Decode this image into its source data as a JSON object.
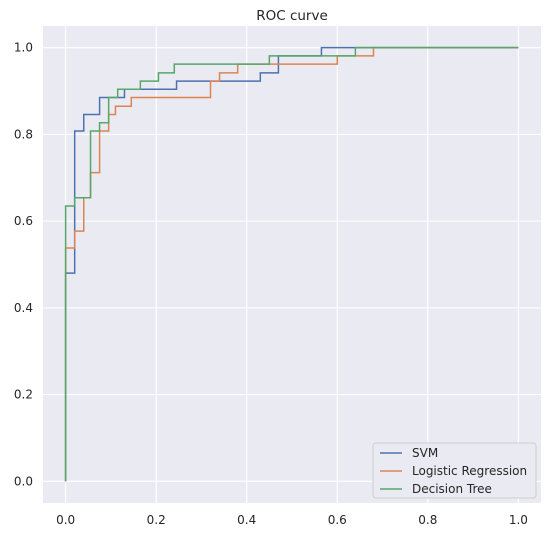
{
  "chart_data": {
    "type": "line",
    "title": "ROC curve",
    "xlabel": "",
    "ylabel": "",
    "xlim": [
      -0.05,
      1.05
    ],
    "ylim": [
      -0.05,
      1.05
    ],
    "xticks": [
      0.0,
      0.2,
      0.4,
      0.6,
      0.8,
      1.0
    ],
    "yticks": [
      0.0,
      0.2,
      0.4,
      0.6,
      0.8,
      1.0
    ],
    "xtick_labels": [
      "0.0",
      "0.2",
      "0.4",
      "0.6",
      "0.8",
      "1.0"
    ],
    "ytick_labels": [
      "0.0",
      "0.2",
      "0.4",
      "0.6",
      "0.8",
      "1.0"
    ],
    "grid": true,
    "legend_position": "lower-right",
    "series": [
      {
        "name": "SVM",
        "color": "#4c72b0",
        "x": [
          0,
          0,
          0.02,
          0.02,
          0.04,
          0.04,
          0.075,
          0.075,
          0.13,
          0.13,
          0.245,
          0.245,
          0.43,
          0.43,
          0.47,
          0.47,
          0.565,
          0.565,
          0.64,
          0.64,
          1.0
        ],
        "y": [
          0,
          0.48,
          0.48,
          0.808,
          0.808,
          0.846,
          0.846,
          0.885,
          0.885,
          0.904,
          0.904,
          0.923,
          0.923,
          0.942,
          0.942,
          0.981,
          0.981,
          1.0,
          1.0,
          1.0,
          1.0
        ]
      },
      {
        "name": "Logistic Regression",
        "color": "#dd8452",
        "x": [
          0,
          0,
          0.02,
          0.02,
          0.04,
          0.04,
          0.055,
          0.055,
          0.075,
          0.075,
          0.095,
          0.095,
          0.11,
          0.11,
          0.145,
          0.145,
          0.32,
          0.32,
          0.34,
          0.34,
          0.38,
          0.38,
          0.6,
          0.6,
          0.68,
          0.68,
          1.0
        ],
        "y": [
          0,
          0.538,
          0.538,
          0.577,
          0.577,
          0.654,
          0.654,
          0.712,
          0.712,
          0.808,
          0.808,
          0.846,
          0.846,
          0.865,
          0.865,
          0.885,
          0.885,
          0.923,
          0.923,
          0.942,
          0.942,
          0.962,
          0.962,
          0.981,
          0.981,
          1.0,
          1.0
        ]
      },
      {
        "name": "Decision Tree",
        "color": "#55a868",
        "x": [
          0,
          0,
          0.02,
          0.02,
          0.055,
          0.055,
          0.075,
          0.075,
          0.095,
          0.095,
          0.115,
          0.115,
          0.165,
          0.165,
          0.205,
          0.205,
          0.24,
          0.24,
          0.45,
          0.45,
          0.47,
          0.47,
          0.64,
          0.64,
          1.0
        ],
        "y": [
          0,
          0.635,
          0.635,
          0.654,
          0.654,
          0.808,
          0.808,
          0.827,
          0.827,
          0.885,
          0.885,
          0.904,
          0.904,
          0.923,
          0.923,
          0.942,
          0.942,
          0.962,
          0.962,
          0.981,
          0.981,
          0.981,
          0.981,
          1.0,
          1.0
        ]
      }
    ]
  }
}
